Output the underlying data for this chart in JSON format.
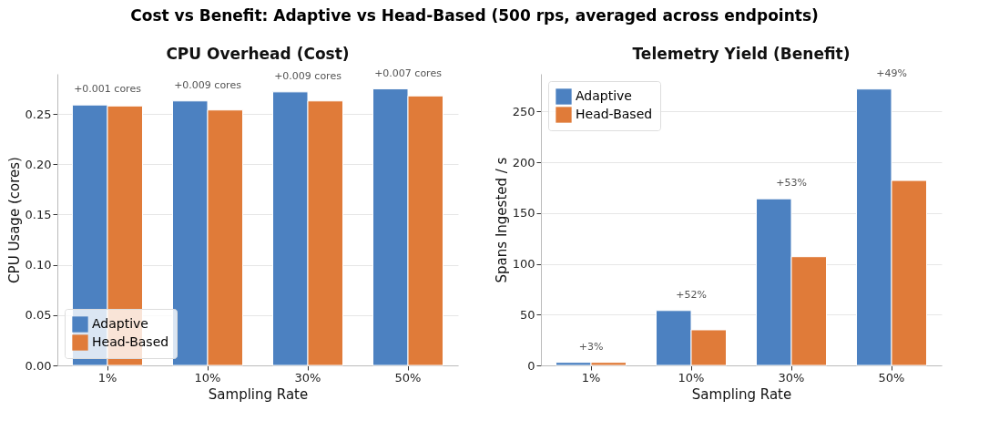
{
  "chart_data": [
    {
      "type": "bar",
      "title": "CPU Overhead (Cost)",
      "xlabel": "Sampling Rate",
      "ylabel": "CPU Usage (cores)",
      "categories": [
        "1%",
        "10%",
        "30%",
        "50%"
      ],
      "series": [
        {
          "name": "Adaptive",
          "color": "#4c81c1",
          "values": [
            0.259,
            0.263,
            0.272,
            0.275
          ]
        },
        {
          "name": "Head-Based",
          "color": "#e07b39",
          "values": [
            0.258,
            0.254,
            0.263,
            0.268
          ]
        }
      ],
      "ylim": [
        0,
        0.29
      ],
      "yticks": [
        {
          "value": 0,
          "label": "0.00"
        },
        {
          "value": 0.05,
          "label": "0.05"
        },
        {
          "value": 0.1,
          "label": "0.10"
        },
        {
          "value": 0.15,
          "label": "0.15"
        },
        {
          "value": 0.2,
          "label": "0.20"
        },
        {
          "value": 0.25,
          "label": "0.25"
        }
      ],
      "grid": "y",
      "legend": "bottom left",
      "annotations": [
        "Cost vs Benefit: Adaptive vs Head-Based (500 rps, averaged across endpoints)",
        {
          "text": "+0.001 cores",
          "x": "1%",
          "y": 0.259
        },
        {
          "text": "+0.009 cores",
          "x": "10%",
          "y": 0.263
        },
        {
          "text": "+0.009 cores",
          "x": "30%",
          "y": 0.272
        },
        {
          "text": "+0.007 cores",
          "x": "50%",
          "y": 0.275
        }
      ]
    },
    {
      "type": "bar",
      "title": "Telemetry Yield (Benefit)",
      "xlabel": "Sampling Rate",
      "ylabel": "Spans Ingested / s",
      "categories": [
        "1%",
        "10%",
        "30%",
        "50%"
      ],
      "series": [
        {
          "name": "Adaptive",
          "color": "#4c81c1",
          "values": [
            3,
            54,
            164,
            272
          ]
        },
        {
          "name": "Head-Based",
          "color": "#e07b39",
          "values": [
            3,
            35,
            107,
            182
          ]
        }
      ],
      "ylim": [
        0,
        287
      ],
      "yticks": [
        0,
        50,
        100,
        150,
        200,
        250
      ],
      "grid": "y",
      "legend": "top left",
      "annotations": [
        {
          "text": "+3%",
          "x": "1%",
          "y": 3
        },
        {
          "text": "+52%",
          "x": "10%",
          "y": 54
        },
        {
          "text": "+53%",
          "x": "30%",
          "y": 164
        },
        {
          "text": "+49%",
          "x": "50%",
          "y": 272
        }
      ]
    }
  ]
}
